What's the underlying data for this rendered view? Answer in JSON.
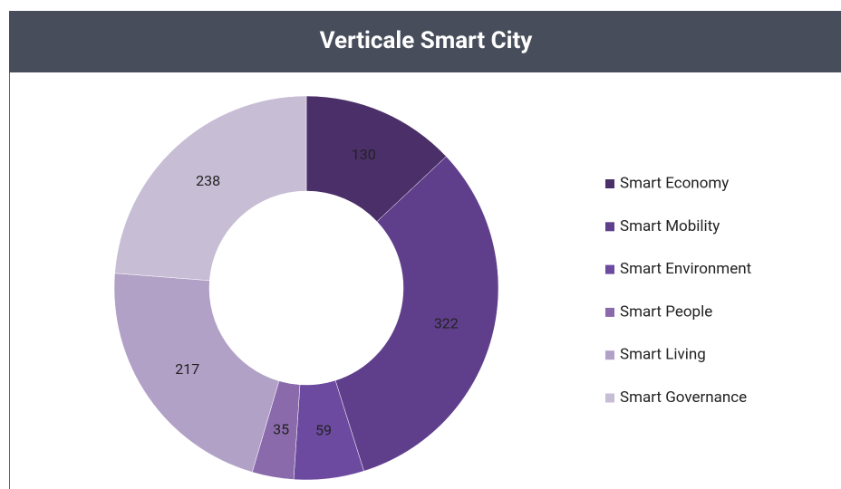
{
  "chart_data": {
    "type": "pie",
    "title": "Verticale Smart City",
    "categories": [
      "Smart Economy",
      "Smart Mobility",
      "Smart Environment",
      "Smart People",
      "Smart Living",
      "Smart Governance"
    ],
    "values": [
      130,
      322,
      59,
      35,
      217,
      238
    ],
    "colors": [
      "#4b2f68",
      "#5f3f8b",
      "#6c4a9f",
      "#8a6aab",
      "#b2a1c7",
      "#c7bdd5"
    ],
    "donut": true,
    "legend": "right"
  }
}
